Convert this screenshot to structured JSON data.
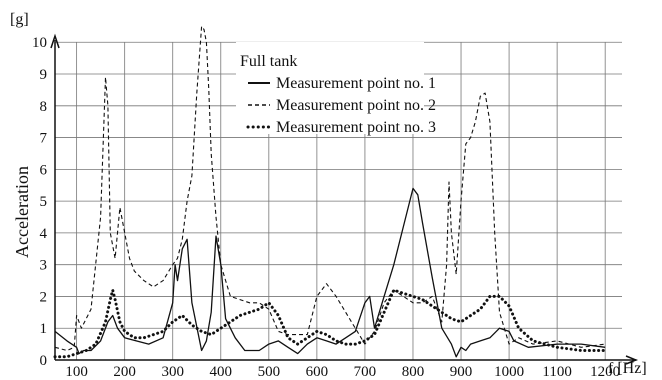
{
  "chart_data": {
    "type": "line",
    "legend_title": "Full tank",
    "xlabel": "f [Hz]",
    "ylabel": "Acceleration",
    "yunit": "[g]",
    "xlim": [
      55,
      1235
    ],
    "ylim": [
      0,
      10.7
    ],
    "xticks": [
      100,
      200,
      300,
      400,
      500,
      600,
      700,
      800,
      900,
      1000,
      1100,
      1200
    ],
    "yticks": [
      0,
      1,
      2,
      3,
      4,
      5,
      6,
      7,
      8,
      9,
      10
    ],
    "grid": true,
    "legend_position": "top-center",
    "series": [
      {
        "name": "Measurement point no. 1",
        "style": "solid",
        "x": [
          55,
          80,
          100,
          105,
          115,
          130,
          150,
          165,
          175,
          185,
          200,
          250,
          280,
          300,
          305,
          310,
          320,
          330,
          340,
          360,
          370,
          380,
          390,
          400,
          410,
          430,
          450,
          480,
          500,
          520,
          540,
          560,
          580,
          600,
          620,
          640,
          660,
          680,
          700,
          710,
          720,
          740,
          760,
          780,
          800,
          810,
          820,
          840,
          860,
          880,
          890,
          900,
          910,
          920,
          940,
          960,
          980,
          1000,
          1010,
          1040,
          1100,
          1150,
          1200
        ],
        "values": [
          0.9,
          0.6,
          0.4,
          0.2,
          0.3,
          0.3,
          0.6,
          1.2,
          1.4,
          1.0,
          0.7,
          0.5,
          0.7,
          1.8,
          3.0,
          2.5,
          3.5,
          3.8,
          1.8,
          0.3,
          0.6,
          1.5,
          3.9,
          3.0,
          1.3,
          0.7,
          0.3,
          0.3,
          0.5,
          0.6,
          0.4,
          0.2,
          0.5,
          0.7,
          0.6,
          0.5,
          0.7,
          0.9,
          1.8,
          2.0,
          1.0,
          2.0,
          3.0,
          4.2,
          5.4,
          5.2,
          4.3,
          2.6,
          1.0,
          0.5,
          0.1,
          0.4,
          0.3,
          0.5,
          0.6,
          0.7,
          1.0,
          0.9,
          0.6,
          0.4,
          0.5,
          0.5,
          0.4
        ]
      },
      {
        "name": "Measurement point no. 2",
        "style": "dashed",
        "x": [
          55,
          80,
          95,
          100,
          110,
          130,
          150,
          160,
          165,
          170,
          180,
          190,
          200,
          210,
          220,
          240,
          260,
          280,
          300,
          310,
          320,
          330,
          340,
          350,
          360,
          365,
          370,
          375,
          380,
          390,
          400,
          420,
          440,
          460,
          480,
          500,
          520,
          540,
          560,
          580,
          600,
          620,
          640,
          660,
          680,
          700,
          720,
          740,
          760,
          780,
          800,
          820,
          840,
          860,
          870,
          875,
          880,
          890,
          900,
          910,
          920,
          930,
          940,
          950,
          960,
          970,
          980,
          1000,
          1020,
          1050,
          1100,
          1150,
          1200
        ],
        "values": [
          0.4,
          0.3,
          0.4,
          1.4,
          1.0,
          1.6,
          4.5,
          8.9,
          8.0,
          4.0,
          3.2,
          4.8,
          4.0,
          3.2,
          2.8,
          2.5,
          2.3,
          2.5,
          3.0,
          3.2,
          3.8,
          5.0,
          5.8,
          8.4,
          10.5,
          10.4,
          10.0,
          8.5,
          6.5,
          4.5,
          3.0,
          2.0,
          1.9,
          1.8,
          1.8,
          1.6,
          0.9,
          0.8,
          0.8,
          0.8,
          2.0,
          2.4,
          2.0,
          1.5,
          1.0,
          0.5,
          0.9,
          1.8,
          2.2,
          2.0,
          1.8,
          1.8,
          2.0,
          1.2,
          3.0,
          5.6,
          4.0,
          2.7,
          5.0,
          6.8,
          7.0,
          7.5,
          8.3,
          8.4,
          7.5,
          4.0,
          1.5,
          0.5,
          0.7,
          0.5,
          0.6,
          0.4,
          0.5
        ]
      },
      {
        "name": "Measurement point no. 3",
        "style": "dotted",
        "x": [
          55,
          80,
          100,
          120,
          140,
          160,
          170,
          175,
          180,
          190,
          200,
          220,
          240,
          260,
          280,
          300,
          320,
          340,
          360,
          380,
          400,
          420,
          440,
          460,
          480,
          500,
          520,
          540,
          560,
          580,
          600,
          620,
          640,
          660,
          680,
          700,
          720,
          740,
          760,
          780,
          800,
          820,
          840,
          860,
          880,
          900,
          920,
          940,
          960,
          980,
          1000,
          1020,
          1050,
          1100,
          1150,
          1200
        ],
        "values": [
          0.1,
          0.1,
          0.2,
          0.3,
          0.5,
          1.2,
          1.9,
          2.2,
          1.9,
          1.2,
          0.9,
          0.7,
          0.7,
          0.8,
          0.9,
          1.2,
          1.4,
          1.1,
          0.9,
          0.8,
          1.0,
          1.2,
          1.4,
          1.5,
          1.6,
          1.8,
          1.4,
          0.7,
          0.5,
          0.7,
          0.9,
          0.8,
          0.6,
          0.5,
          0.5,
          0.6,
          0.8,
          1.5,
          2.2,
          2.1,
          2.0,
          1.9,
          1.7,
          1.5,
          1.3,
          1.2,
          1.4,
          1.6,
          2.0,
          2.0,
          1.7,
          1.0,
          0.6,
          0.4,
          0.3,
          0.3
        ]
      }
    ]
  }
}
